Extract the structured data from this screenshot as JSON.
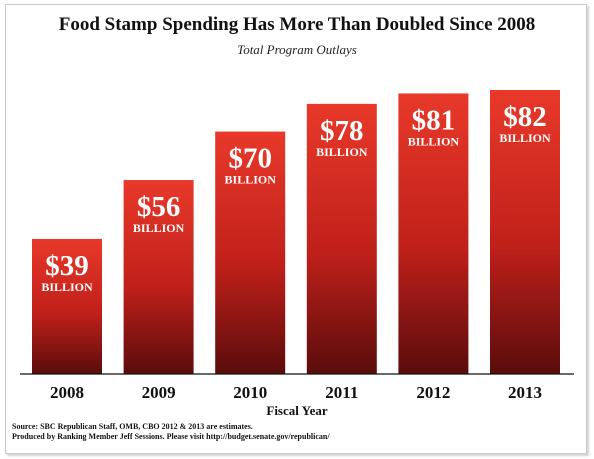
{
  "chart_data": {
    "type": "bar",
    "title": "Food Stamp Spending Has More Than Doubled Since 2008",
    "subtitle": "Total Program Outlays",
    "xlabel": "Fiscal Year",
    "ylabel": "",
    "categories": [
      "2008",
      "2009",
      "2010",
      "2011",
      "2012",
      "2013"
    ],
    "values": [
      39,
      56,
      70,
      78,
      81,
      82
    ],
    "value_labels": [
      "$39",
      "$56",
      "$70",
      "$78",
      "$81",
      "$82"
    ],
    "unit_label": "BILLION",
    "ylim": [
      0,
      82
    ],
    "grid": false,
    "legend": "none",
    "colors": {
      "bar_top": "#e8392a",
      "bar_bottom": "#5a0c0c",
      "label": "#ffffff"
    }
  },
  "source_line_1": "Source: SBC Republican Staff, OMB, CBO 2012 & 2013 are estimates.",
  "source_line_2": "Produced by Ranking Member Jeff Sessions. Please visit http://budget.senate.gov/republican/"
}
